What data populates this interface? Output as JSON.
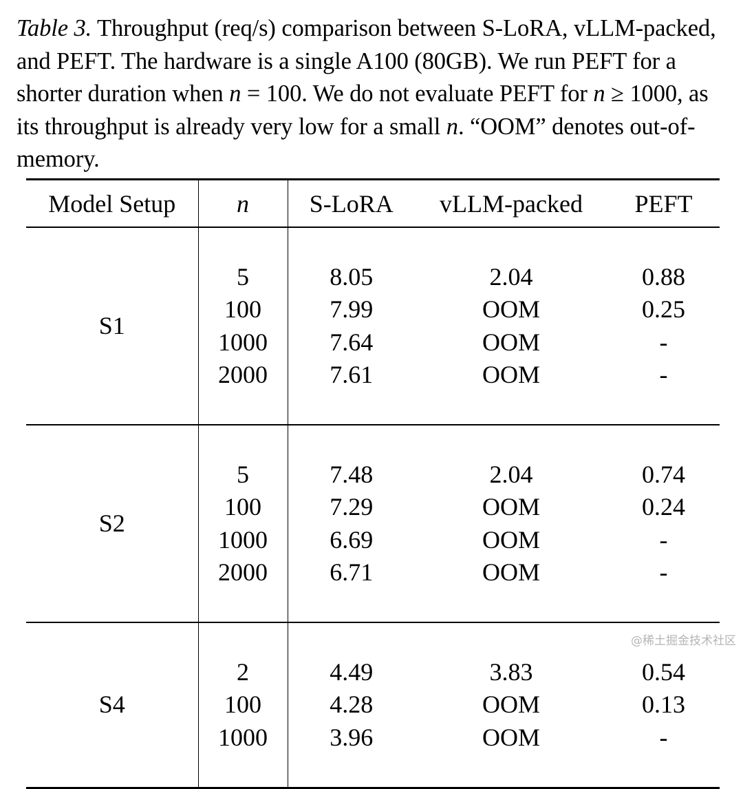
{
  "caption": {
    "label": "Table 3.",
    "text_1": " Throughput (req/s) comparison between S-LoRA, vLLM-packed, and PEFT. The hardware is a single A100 (80GB). We run PEFT for a shorter duration when ",
    "math_1_var": "n",
    "math_1_op": " = ",
    "math_1_val": "100",
    "text_2": ". We do not evaluate PEFT for ",
    "math_2_var": "n",
    "math_2_op": " ≥ ",
    "math_2_val": "1000",
    "text_3": ", as its throughput is already very low for a small ",
    "math_3_var": "n",
    "text_4": ". “OOM” denotes out-of-memory."
  },
  "table": {
    "headers": {
      "setup": "Model Setup",
      "n": "n",
      "slora": "S-LoRA",
      "vllm": "vLLM-packed",
      "peft": "PEFT"
    },
    "groups": [
      {
        "setup": "S1",
        "rows": [
          {
            "n": "5",
            "slora": "8.05",
            "vllm": "2.04",
            "peft": "0.88"
          },
          {
            "n": "100",
            "slora": "7.99",
            "vllm": "OOM",
            "peft": "0.25"
          },
          {
            "n": "1000",
            "slora": "7.64",
            "vllm": "OOM",
            "peft": "-"
          },
          {
            "n": "2000",
            "slora": "7.61",
            "vllm": "OOM",
            "peft": "-"
          }
        ]
      },
      {
        "setup": "S2",
        "rows": [
          {
            "n": "5",
            "slora": "7.48",
            "vllm": "2.04",
            "peft": "0.74"
          },
          {
            "n": "100",
            "slora": "7.29",
            "vllm": "OOM",
            "peft": "0.24"
          },
          {
            "n": "1000",
            "slora": "6.69",
            "vllm": "OOM",
            "peft": "-"
          },
          {
            "n": "2000",
            "slora": "6.71",
            "vllm": "OOM",
            "peft": "-"
          }
        ]
      },
      {
        "setup": "S4",
        "rows": [
          {
            "n": "2",
            "slora": "4.49",
            "vllm": "3.83",
            "peft": "0.54"
          },
          {
            "n": "100",
            "slora": "4.28",
            "vllm": "OOM",
            "peft": "0.13"
          },
          {
            "n": "1000",
            "slora": "3.96",
            "vllm": "OOM",
            "peft": "-"
          }
        ]
      }
    ]
  },
  "watermark": "@稀土掘金技术社区"
}
